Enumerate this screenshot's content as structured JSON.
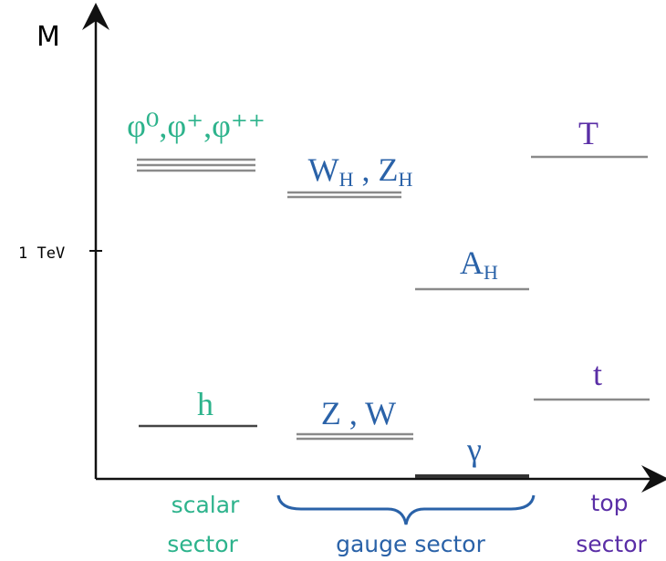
{
  "axis": {
    "y_label": "M",
    "tick_label": "1 TeV"
  },
  "particles": [
    {
      "parts": [
        "φ⁰,φ⁺,φ⁺⁺"
      ]
    },
    {
      "parts": [
        "W",
        "H",
        " , ",
        "Z",
        "H"
      ]
    },
    {
      "parts": [
        "A",
        "H"
      ]
    },
    {
      "parts": [
        "T"
      ]
    },
    {
      "parts": [
        "h"
      ]
    },
    {
      "parts": [
        "Z , W"
      ]
    },
    {
      "parts": [
        "γ"
      ]
    },
    {
      "parts": [
        "t"
      ]
    }
  ],
  "sectors": [
    {
      "lines": [
        "scalar",
        "sector"
      ]
    },
    {
      "lines": [
        "gauge sector"
      ]
    },
    {
      "lines": [
        "top",
        "sector"
      ]
    }
  ]
}
